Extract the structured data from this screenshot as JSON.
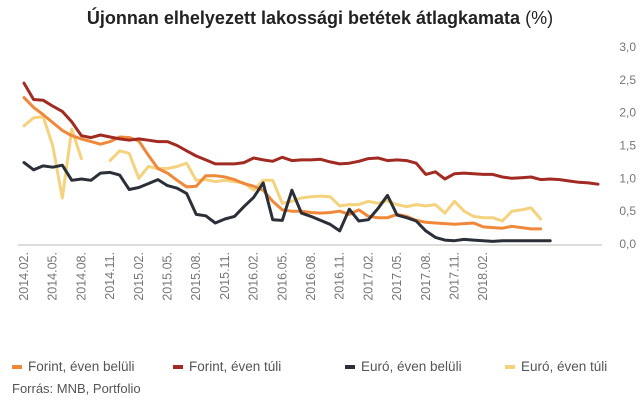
{
  "title": "Újonnan elhelyezett lakossági betétek átlagkamata",
  "title_unit": "(%)",
  "source": "Forrás: MNB, Portfolio",
  "chart_data": {
    "type": "line",
    "title": "Újonnan elhelyezett lakossági betétek átlagkamata (%)",
    "xlabel": "",
    "ylabel": "",
    "ylim": [
      0,
      3
    ],
    "yticks": [
      "3,0",
      "2,5",
      "2,0",
      "1,5",
      "1,0",
      "0,5",
      "0,0"
    ],
    "ytick_values": [
      3,
      2.5,
      2,
      1.5,
      1,
      0.5,
      0
    ],
    "y_axis_position": "right",
    "grid": false,
    "legend_position": "bottom",
    "x_start": "2014.02.",
    "x_tick_labels": [
      "2014.02.",
      "2014.05.",
      "2014.08.",
      "2014.11.",
      "2015.02.",
      "2015.05.",
      "2015.08.",
      "2015.11.",
      "2016.02.",
      "2016.05.",
      "2016.08.",
      "2016.11.",
      "2017.02.",
      "2017.05.",
      "2017.08.",
      "2017.11.",
      "2018.02."
    ],
    "series": [
      {
        "name": "Forint, éven belüli",
        "color": "#f0883a",
        "values": [
          2.23,
          2.08,
          1.97,
          1.85,
          1.73,
          1.65,
          1.6,
          1.56,
          1.52,
          1.56,
          1.63,
          1.62,
          1.57,
          1.35,
          1.15,
          1.08,
          0.97,
          0.87,
          0.88,
          1.04,
          1.04,
          1.02,
          0.98,
          0.92,
          0.88,
          0.82,
          0.65,
          0.52,
          0.5,
          0.5,
          0.48,
          0.47,
          0.48,
          0.5,
          0.45,
          0.52,
          0.42,
          0.4,
          0.4,
          0.45,
          0.42,
          0.36,
          0.33,
          0.32,
          0.31,
          0.3,
          0.31,
          0.32,
          0.26,
          0.25,
          0.24,
          0.27,
          0.25,
          0.23,
          0.23
        ]
      },
      {
        "name": "Forint, éven túli",
        "color": "#a12b22",
        "values": [
          2.45,
          2.2,
          2.19,
          2.1,
          2.02,
          1.86,
          1.65,
          1.62,
          1.66,
          1.63,
          1.6,
          1.58,
          1.6,
          1.58,
          1.56,
          1.56,
          1.5,
          1.42,
          1.34,
          1.28,
          1.22,
          1.22,
          1.22,
          1.24,
          1.31,
          1.28,
          1.26,
          1.32,
          1.27,
          1.28,
          1.28,
          1.29,
          1.25,
          1.22,
          1.23,
          1.26,
          1.3,
          1.31,
          1.27,
          1.28,
          1.27,
          1.23,
          1.06,
          1.1,
          0.99,
          1.07,
          1.08,
          1.07,
          1.06,
          1.06,
          1.02,
          1.0,
          1.01,
          1.02,
          0.98,
          0.99,
          0.98,
          0.96,
          0.94,
          0.93,
          0.91
        ]
      },
      {
        "name": "Euró, éven belüli",
        "color": "#2b2f37",
        "values": [
          1.24,
          1.13,
          1.19,
          1.17,
          1.2,
          0.97,
          0.99,
          0.97,
          1.08,
          1.09,
          1.05,
          0.83,
          0.86,
          0.92,
          0.98,
          0.89,
          0.85,
          0.77,
          0.45,
          0.43,
          0.32,
          0.38,
          0.42,
          0.57,
          0.71,
          0.93,
          0.37,
          0.36,
          0.82,
          0.47,
          0.42,
          0.36,
          0.3,
          0.2,
          0.53,
          0.35,
          0.37,
          0.54,
          0.74,
          0.44,
          0.4,
          0.35,
          0.2,
          0.1,
          0.06,
          0.05,
          0.07,
          0.06,
          0.05,
          0.04,
          0.05,
          0.05,
          0.05,
          0.05,
          0.05,
          0.05
        ]
      },
      {
        "name": "Euró, éven túli",
        "color": "#f5d27e",
        "values": [
          1.8,
          1.92,
          1.94,
          1.5,
          0.7,
          1.75,
          1.3,
          null,
          null,
          1.27,
          1.42,
          1.38,
          1.0,
          1.18,
          1.15,
          1.15,
          1.18,
          1.23,
          0.97,
          0.98,
          0.95,
          0.97,
          0.95,
          0.93,
          0.82,
          0.97,
          0.97,
          0.62,
          0.65,
          0.7,
          0.72,
          0.73,
          0.72,
          0.58,
          0.6,
          0.6,
          0.65,
          0.62,
          0.66,
          0.6,
          0.57,
          0.6,
          0.58,
          0.6,
          0.47,
          0.65,
          0.5,
          0.42,
          0.4,
          0.4,
          0.35,
          0.5,
          0.52,
          0.55,
          0.38
        ]
      }
    ]
  }
}
